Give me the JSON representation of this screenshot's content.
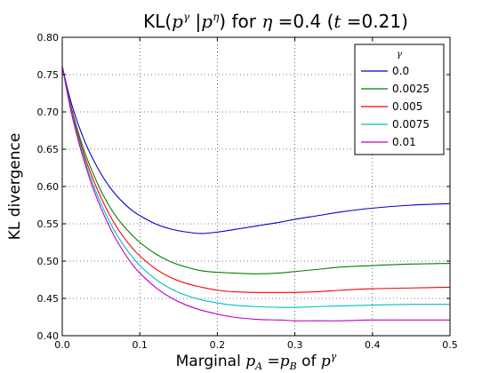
{
  "chart_data": {
    "type": "line",
    "title": {
      "prefix": "KL(",
      "math1": "p",
      "sup1": "γ",
      "mid": " |",
      "math2": "p",
      "sup2": "η",
      "close": ")",
      "for_text": " for ",
      "eta_math": "η",
      "eta_eq": " =0.4 (",
      "t_math": "t",
      "t_eq": " =0.21)"
    },
    "xlabel": {
      "prefix": "Marginal ",
      "pa_math": "p",
      "pa_sub": "A",
      "eq": " =",
      "pb_math": "p",
      "pb_sub": "B",
      "of_text": " of ",
      "p_math": "p",
      "p_sup": "γ"
    },
    "ylabel": "KL divergence",
    "xlim": [
      0,
      0.5
    ],
    "ylim": [
      0.4,
      0.8
    ],
    "x_ticks": [
      "0.0",
      "0.1",
      "0.2",
      "0.3",
      "0.4",
      "0.5"
    ],
    "y_ticks": [
      "0.40",
      "0.45",
      "0.50",
      "0.55",
      "0.60",
      "0.65",
      "0.70",
      "0.75",
      "0.80"
    ],
    "grid": true,
    "legend": {
      "title": "γ",
      "placement": "top-right"
    },
    "x": [
      0.0,
      0.01,
      0.02,
      0.03,
      0.04,
      0.05,
      0.06,
      0.07,
      0.08,
      0.09,
      0.1,
      0.12,
      0.14,
      0.16,
      0.18,
      0.2,
      0.22,
      0.25,
      0.28,
      0.3,
      0.33,
      0.36,
      0.4,
      0.45,
      0.5
    ],
    "series": [
      {
        "name": "0.0",
        "color": "#0000cc",
        "values": [
          0.761,
          0.718,
          0.685,
          0.658,
          0.636,
          0.617,
          0.601,
          0.588,
          0.577,
          0.568,
          0.561,
          0.55,
          0.543,
          0.539,
          0.537,
          0.539,
          0.542,
          0.547,
          0.552,
          0.556,
          0.561,
          0.566,
          0.571,
          0.575,
          0.577
        ]
      },
      {
        "name": "0.0025",
        "color": "#007f00",
        "values": [
          0.761,
          0.713,
          0.675,
          0.643,
          0.617,
          0.594,
          0.575,
          0.559,
          0.546,
          0.535,
          0.525,
          0.51,
          0.499,
          0.492,
          0.487,
          0.485,
          0.484,
          0.483,
          0.484,
          0.486,
          0.489,
          0.492,
          0.494,
          0.496,
          0.497
        ]
      },
      {
        "name": "0.005",
        "color": "#ff0000",
        "values": [
          0.761,
          0.711,
          0.671,
          0.637,
          0.609,
          0.585,
          0.564,
          0.546,
          0.531,
          0.518,
          0.507,
          0.49,
          0.478,
          0.47,
          0.465,
          0.461,
          0.459,
          0.458,
          0.458,
          0.458,
          0.459,
          0.461,
          0.463,
          0.464,
          0.465
        ]
      },
      {
        "name": "0.0075",
        "color": "#00bfbf",
        "values": [
          0.761,
          0.709,
          0.667,
          0.632,
          0.602,
          0.577,
          0.555,
          0.536,
          0.52,
          0.506,
          0.494,
          0.476,
          0.463,
          0.454,
          0.448,
          0.444,
          0.441,
          0.439,
          0.438,
          0.438,
          0.439,
          0.44,
          0.441,
          0.442,
          0.442
        ]
      },
      {
        "name": "0.01",
        "color": "#bf00bf",
        "values": [
          0.761,
          0.707,
          0.664,
          0.628,
          0.597,
          0.571,
          0.548,
          0.528,
          0.511,
          0.496,
          0.484,
          0.465,
          0.451,
          0.441,
          0.434,
          0.429,
          0.425,
          0.422,
          0.421,
          0.42,
          0.42,
          0.42,
          0.421,
          0.421,
          0.421
        ]
      }
    ]
  }
}
